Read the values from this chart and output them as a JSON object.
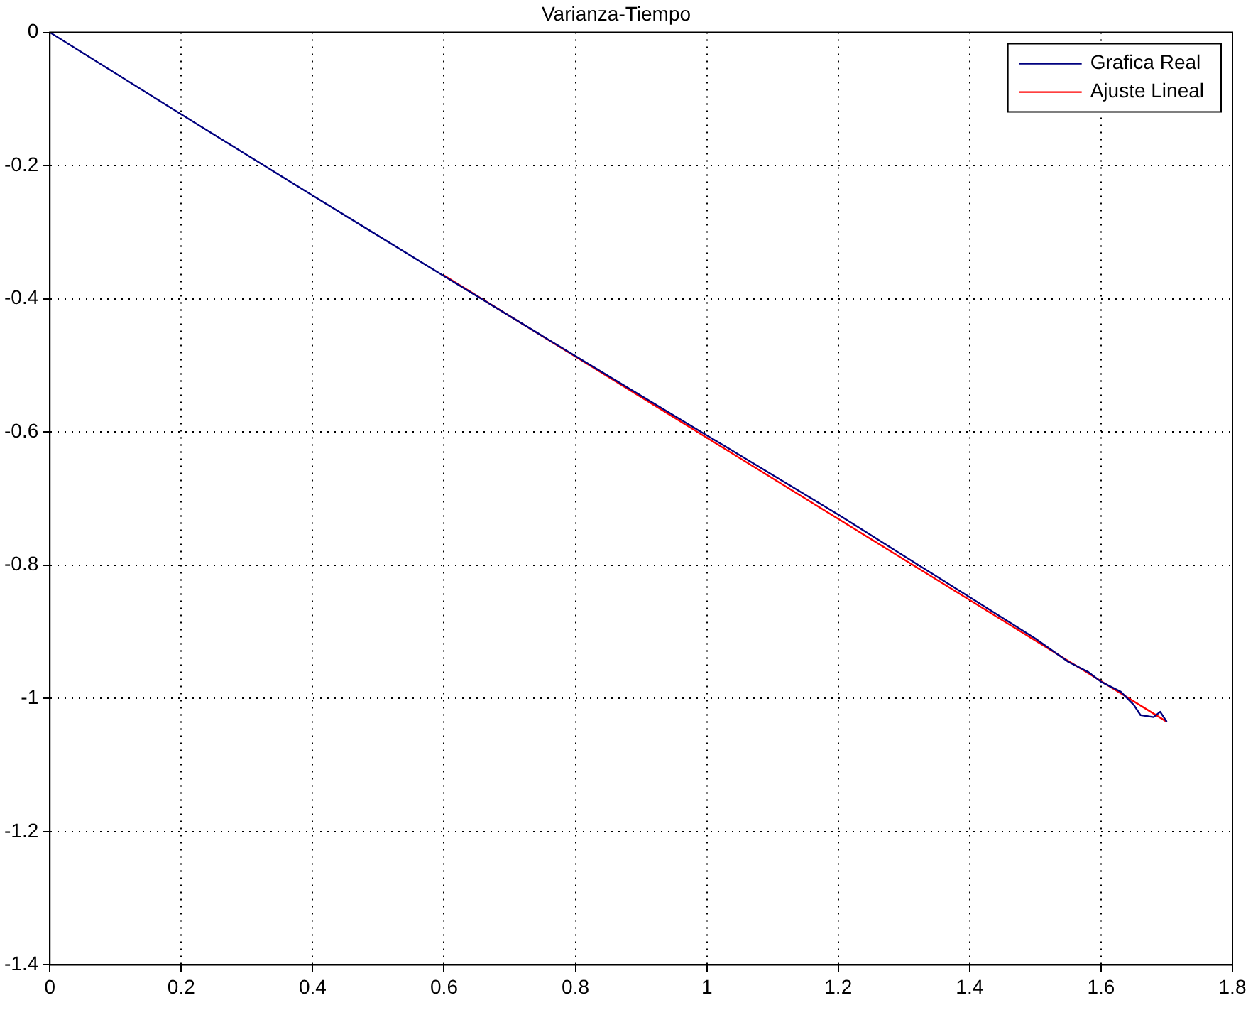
{
  "chart_data": {
    "type": "line",
    "title": "Varianza-Tiempo",
    "series": [
      {
        "name": "Grafica Real",
        "color": "#00007f",
        "x": [
          0,
          0.2,
          0.4,
          0.6,
          0.8,
          1.0,
          1.2,
          1.4,
          1.5,
          1.55,
          1.58,
          1.6,
          1.63,
          1.65,
          1.66,
          1.68,
          1.69,
          1.7
        ],
        "values": [
          0,
          -0.123,
          -0.245,
          -0.366,
          -0.486,
          -0.605,
          -0.724,
          -0.848,
          -0.91,
          -0.945,
          -0.96,
          -0.975,
          -0.99,
          -1.01,
          -1.025,
          -1.028,
          -1.02,
          -1.035
        ]
      },
      {
        "name": "Ajuste Lineal",
        "color": "#ff0000",
        "x": [
          0.6,
          1.7
        ],
        "values": [
          -0.365,
          -1.035
        ]
      }
    ],
    "xlim": [
      0,
      1.8
    ],
    "xticks": [
      0,
      0.2,
      0.4,
      0.6,
      0.8,
      1,
      1.2,
      1.4,
      1.6,
      1.8
    ],
    "ylim": [
      -1.4,
      0
    ],
    "yticks": [
      -1.4,
      -1.2,
      -1,
      -0.8,
      -0.6,
      -0.4,
      -0.2,
      0
    ],
    "grid": true,
    "legend": "top right",
    "line_style": "solid",
    "marker": "none"
  }
}
